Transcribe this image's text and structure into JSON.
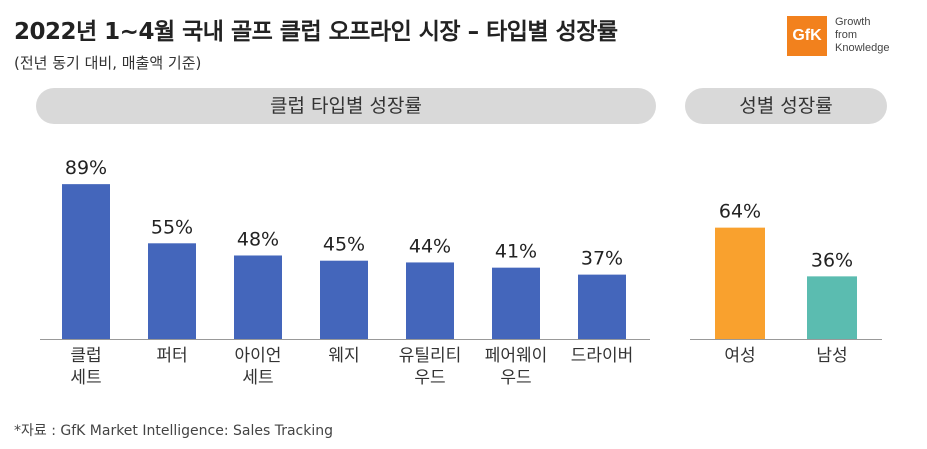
{
  "title": "2022년 1~4월 국내 골프 클럽 오프라인 시장 – 타입별 성장률",
  "subtitle": "(전년 동기 대비, 매출액 기준)",
  "logo": {
    "mark": "GfK",
    "tagline": [
      "Growth",
      "from",
      "Knowledge"
    ],
    "color": "#f2811d"
  },
  "footer": "*자료 : GfK Market Intelligence: Sales Tracking",
  "chart_data": [
    {
      "type": "bar",
      "title": "클럽 타입별 성장률",
      "categories": [
        "클럽\n세트",
        "퍼터",
        "아이언\n세트",
        "웨지",
        "유틸리티\n우드",
        "페어웨이\n우드",
        "드라이버"
      ],
      "values": [
        89,
        55,
        48,
        45,
        44,
        41,
        37
      ],
      "data_labels": [
        "89%",
        "55%",
        "48%",
        "45%",
        "44%",
        "41%",
        "37%"
      ],
      "unit": "%",
      "colors": [
        "#4466bb"
      ],
      "ylim": [
        0,
        100
      ],
      "grid": false
    },
    {
      "type": "bar",
      "title": "성별 성장률",
      "categories": [
        "여성",
        "남성"
      ],
      "values": [
        64,
        36
      ],
      "data_labels": [
        "64%",
        "36%"
      ],
      "unit": "%",
      "colors": [
        "#f9a12e",
        "#5bbcb0"
      ],
      "ylim": [
        0,
        100
      ],
      "grid": false
    }
  ]
}
